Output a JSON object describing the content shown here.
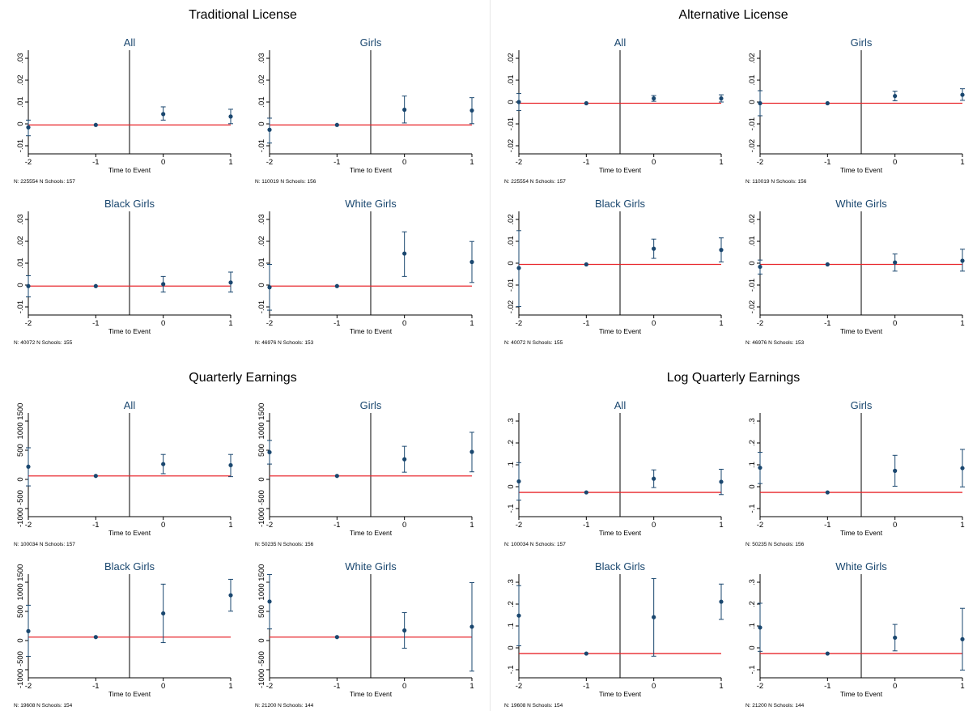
{
  "panels": [
    {
      "title": "Traditional License",
      "yticks": [
        ".03",
        ".02",
        ".01",
        "0",
        "-.01"
      ],
      "ymin": -0.012,
      "ymax": 0.031,
      "subplots": [
        {
          "title": "All",
          "note": "N: 225554 N Schools: 157",
          "points": [
            {
              "x": -2,
              "y": -0.001,
              "lo": -0.0045,
              "hi": 0.002
            },
            {
              "x": -1,
              "y": 0,
              "lo": 0,
              "hi": 0
            },
            {
              "x": 0,
              "y": 0.0045,
              "lo": 0.002,
              "hi": 0.0075
            },
            {
              "x": 1,
              "y": 0.0035,
              "lo": 0.0005,
              "hi": 0.0065
            }
          ]
        },
        {
          "title": "Girls",
          "note": "N: 110019 N Schools: 156",
          "points": [
            {
              "x": -2,
              "y": -0.002,
              "lo": -0.0075,
              "hi": 0.0028
            },
            {
              "x": -1,
              "y": 0,
              "lo": 0,
              "hi": 0
            },
            {
              "x": 0,
              "y": 0.0063,
              "lo": 0.0008,
              "hi": 0.012
            },
            {
              "x": 1,
              "y": 0.006,
              "lo": 0.0005,
              "hi": 0.0113
            }
          ]
        },
        {
          "title": "Black Girls",
          "note": "N: 40072 N Schools: 155",
          "points": [
            {
              "x": -2,
              "y": 0,
              "lo": -0.0045,
              "hi": 0.0043
            },
            {
              "x": -1,
              "y": 0,
              "lo": 0,
              "hi": 0
            },
            {
              "x": 0,
              "y": 0.0008,
              "lo": -0.0025,
              "hi": 0.004
            },
            {
              "x": 1,
              "y": 0.0015,
              "lo": -0.0025,
              "hi": 0.0058
            }
          ]
        },
        {
          "title": "White Girls",
          "note": "N: 46976 N Schools: 153",
          "points": [
            {
              "x": -2,
              "y": -0.0005,
              "lo": -0.01,
              "hi": 0.009
            },
            {
              "x": -1,
              "y": 0,
              "lo": 0,
              "hi": 0
            },
            {
              "x": 0,
              "y": 0.0135,
              "lo": 0.004,
              "hi": 0.0225
            },
            {
              "x": 1,
              "y": 0.01,
              "lo": 0.0015,
              "hi": 0.0185
            }
          ]
        }
      ]
    },
    {
      "title": "Alternative License",
      "yticks": [
        ".02",
        ".01",
        "0",
        "-.01",
        "-.02"
      ],
      "ymin": -0.021,
      "ymax": 0.022,
      "subplots": [
        {
          "title": "All",
          "note": "N: 225554 N Schools: 157",
          "points": [
            {
              "x": -2,
              "y": 0.0005,
              "lo": -0.003,
              "hi": 0.004
            },
            {
              "x": -1,
              "y": 0,
              "lo": 0,
              "hi": 0
            },
            {
              "x": 0,
              "y": 0.002,
              "lo": 0.0008,
              "hi": 0.0032
            },
            {
              "x": 1,
              "y": 0.002,
              "lo": 0.0005,
              "hi": 0.0035
            }
          ]
        },
        {
          "title": "Girls",
          "note": "N: 110019 N Schools: 156",
          "points": [
            {
              "x": -2,
              "y": 0,
              "lo": -0.0052,
              "hi": 0.0052
            },
            {
              "x": -1,
              "y": 0,
              "lo": 0,
              "hi": 0
            },
            {
              "x": 0,
              "y": 0.003,
              "lo": 0.001,
              "hi": 0.005
            },
            {
              "x": 1,
              "y": 0.0035,
              "lo": 0.0012,
              "hi": 0.006
            }
          ]
        },
        {
          "title": "Black Girls",
          "note": "N: 40072 N Schools: 155",
          "points": [
            {
              "x": -2,
              "y": -0.0015,
              "lo": -0.0175,
              "hi": 0.014
            },
            {
              "x": -1,
              "y": 0,
              "lo": 0,
              "hi": 0
            },
            {
              "x": 0,
              "y": 0.0065,
              "lo": 0.0025,
              "hi": 0.0105
            },
            {
              "x": 1,
              "y": 0.006,
              "lo": 0.001,
              "hi": 0.011
            }
          ]
        },
        {
          "title": "White Girls",
          "note": "N: 46976 N Schools: 153",
          "points": [
            {
              "x": -2,
              "y": -0.001,
              "lo": -0.004,
              "hi": 0.0018
            },
            {
              "x": -1,
              "y": 0,
              "lo": 0,
              "hi": 0
            },
            {
              "x": 0,
              "y": 0.0008,
              "lo": -0.0028,
              "hi": 0.0043
            },
            {
              "x": 1,
              "y": 0.0015,
              "lo": -0.0028,
              "hi": 0.0063
            }
          ]
        }
      ]
    },
    {
      "title": "Quarterly Earnings",
      "yticks": [
        "1000 1500",
        "500",
        "0",
        "-1000 -500"
      ],
      "ymin": -1100,
      "ymax": 1700,
      "subplots": [
        {
          "title": "All",
          "note": "N: 100034 N Schools: 157",
          "points": [
            {
              "x": -2,
              "y": 250,
              "lo": -270,
              "hi": 760
            },
            {
              "x": -1,
              "y": 0,
              "lo": 0,
              "hi": 0
            },
            {
              "x": 0,
              "y": 320,
              "lo": 60,
              "hi": 580
            },
            {
              "x": 1,
              "y": 290,
              "lo": -20,
              "hi": 580
            }
          ]
        },
        {
          "title": "Girls",
          "note": "N: 50235 N Schools: 156",
          "points": [
            {
              "x": -2,
              "y": 640,
              "lo": 320,
              "hi": 960
            },
            {
              "x": -1,
              "y": 0,
              "lo": 0,
              "hi": 0
            },
            {
              "x": 0,
              "y": 450,
              "lo": 100,
              "hi": 800
            },
            {
              "x": 1,
              "y": 650,
              "lo": 110,
              "hi": 1180
            }
          ]
        },
        {
          "title": "Black Girls",
          "note": "N: 19608 N Schools: 154",
          "points": [
            {
              "x": -2,
              "y": 160,
              "lo": -520,
              "hi": 860
            },
            {
              "x": -1,
              "y": 0,
              "lo": 0,
              "hi": 0
            },
            {
              "x": 0,
              "y": 640,
              "lo": -150,
              "hi": 1430
            },
            {
              "x": 1,
              "y": 1130,
              "lo": 700,
              "hi": 1560
            }
          ]
        },
        {
          "title": "White Girls",
          "note": "N: 21200 N Schools: 144",
          "points": [
            {
              "x": -2,
              "y": 960,
              "lo": 220,
              "hi": 1690
            },
            {
              "x": -1,
              "y": 0,
              "lo": 0,
              "hi": 0
            },
            {
              "x": 0,
              "y": 180,
              "lo": -300,
              "hi": 660
            },
            {
              "x": 1,
              "y": 280,
              "lo": -920,
              "hi": 1470
            }
          ]
        }
      ]
    },
    {
      "title": "Log Quarterly Earnings",
      "yticks": [
        ".3",
        ".2",
        ".1",
        "0",
        "-.1"
      ],
      "ymin": -0.11,
      "ymax": 0.36,
      "subplots": [
        {
          "title": "All",
          "note": "N: 100034 N Schools: 157",
          "points": [
            {
              "x": -2,
              "y": 0.05,
              "lo": -0.035,
              "hi": 0.135
            },
            {
              "x": -1,
              "y": 0,
              "lo": 0,
              "hi": 0
            },
            {
              "x": 0,
              "y": 0.062,
              "lo": 0.022,
              "hi": 0.102
            },
            {
              "x": 1,
              "y": 0.048,
              "lo": -0.01,
              "hi": 0.105
            }
          ]
        },
        {
          "title": "Girls",
          "note": "N: 50235 N Schools: 156",
          "points": [
            {
              "x": -2,
              "y": 0.112,
              "lo": 0.04,
              "hi": 0.182
            },
            {
              "x": -1,
              "y": 0,
              "lo": 0,
              "hi": 0
            },
            {
              "x": 0,
              "y": 0.098,
              "lo": 0.028,
              "hi": 0.168
            },
            {
              "x": 1,
              "y": 0.11,
              "lo": 0.025,
              "hi": 0.195
            }
          ]
        },
        {
          "title": "Black Girls",
          "note": "N: 19608 N Schools: 154",
          "points": [
            {
              "x": -2,
              "y": 0.172,
              "lo": 0.035,
              "hi": 0.308
            },
            {
              "x": -1,
              "y": 0,
              "lo": 0,
              "hi": 0
            },
            {
              "x": 0,
              "y": 0.165,
              "lo": -0.012,
              "hi": 0.34
            },
            {
              "x": 1,
              "y": 0.235,
              "lo": 0.155,
              "hi": 0.315
            }
          ]
        },
        {
          "title": "White Girls",
          "note": "N: 21200 N Schools: 144",
          "points": [
            {
              "x": -2,
              "y": 0.118,
              "lo": 0.01,
              "hi": 0.228
            },
            {
              "x": -1,
              "y": 0,
              "lo": 0,
              "hi": 0
            },
            {
              "x": 0,
              "y": 0.072,
              "lo": 0.012,
              "hi": 0.132
            },
            {
              "x": 1,
              "y": 0.065,
              "lo": -0.075,
              "hi": 0.205
            }
          ]
        }
      ]
    }
  ],
  "xticks": [
    "-2",
    "-1",
    "0",
    "1"
  ],
  "xlabel": "Time to Event",
  "colors": {
    "marker": "#1a476f",
    "zero_line": "#e8262b",
    "event_line": "#000000",
    "title": "#1a476f",
    "axis": "#000000"
  },
  "chart_data": {
    "type": "scatter",
    "xlabel": "Time to Event",
    "x": [
      -2,
      -1,
      0,
      1
    ],
    "event_line_x": -0.5,
    "reference_line_y": 0,
    "panels": [
      "Traditional License",
      "Alternative License",
      "Quarterly Earnings",
      "Log Quarterly Earnings"
    ],
    "subplots": [
      "All",
      "Girls",
      "Black Girls",
      "White Girls"
    ]
  }
}
